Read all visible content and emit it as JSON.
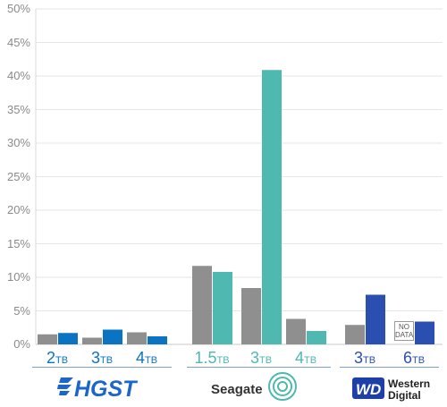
{
  "chart_data": {
    "type": "bar",
    "y_ticks": [
      "0%",
      "5%",
      "10%",
      "15%",
      "20%",
      "25%",
      "30%",
      "35%",
      "40%",
      "45%",
      "50%"
    ],
    "ylim": [
      0,
      50
    ],
    "groups": [
      {
        "brand": "HGST",
        "color": "#0a74c2",
        "bars": [
          {
            "size": "2",
            "unit": "TB",
            "grey": 1.5,
            "color": 1.7
          },
          {
            "size": "3",
            "unit": "TB",
            "grey": 1.0,
            "color": 2.2
          },
          {
            "size": "4",
            "unit": "TB",
            "grey": 1.8,
            "color": 1.2
          }
        ]
      },
      {
        "brand": "Seagate",
        "color": "#4fb8b0",
        "bars": [
          {
            "size": "1.5",
            "unit": "TB",
            "grey": 11.7,
            "color": 10.8
          },
          {
            "size": "3",
            "unit": "TB",
            "grey": 8.4,
            "color": 40.9
          },
          {
            "size": "4",
            "unit": "TB",
            "grey": 3.8,
            "color": 2.0
          }
        ]
      },
      {
        "brand": "Western Digital",
        "color": "#2a4fb0",
        "bars": [
          {
            "size": "3",
            "unit": "TB",
            "grey": 2.9,
            "color": 7.4
          },
          {
            "size": "6",
            "unit": "TB",
            "grey": null,
            "color": 3.4,
            "grey_label": "NO DATA"
          }
        ]
      }
    ],
    "grey_color": "#8f8f8f"
  },
  "logos": {
    "hgst": "HGST",
    "seagate": "Seagate",
    "wd_mark": "WD",
    "wd_line1": "Western",
    "wd_line2": "Digital"
  }
}
